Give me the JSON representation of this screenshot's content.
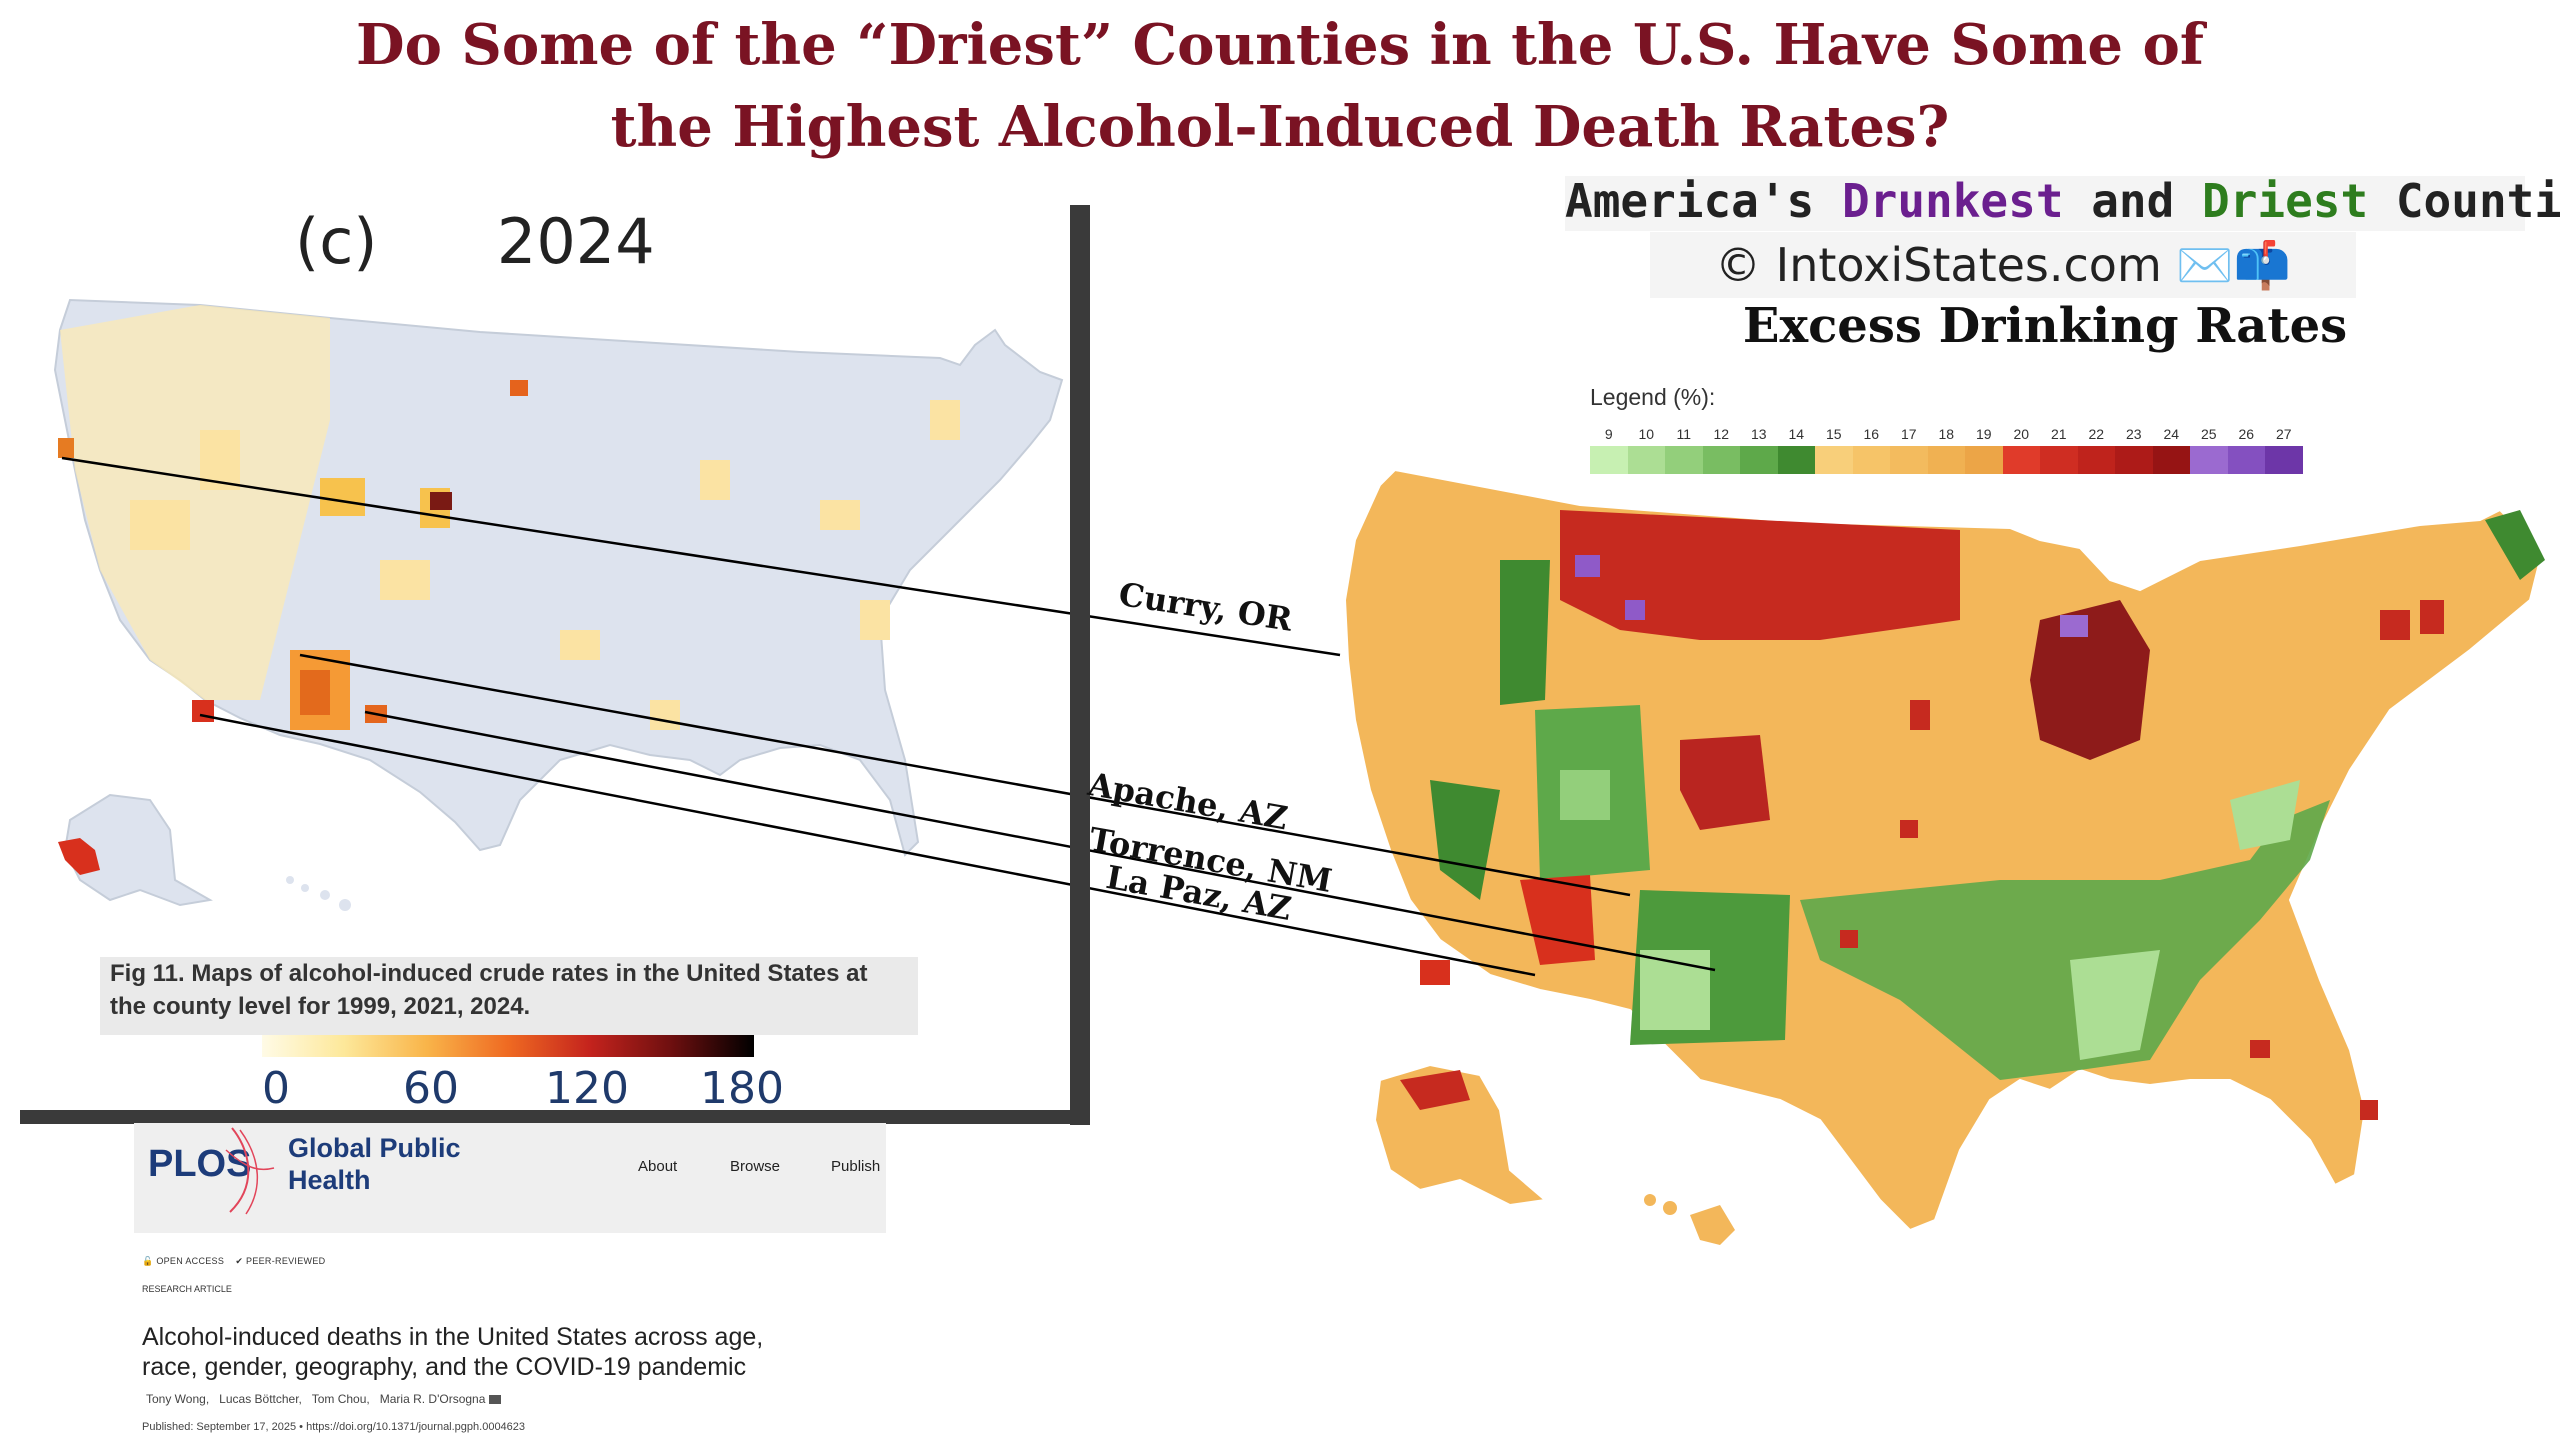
{
  "headline": {
    "line1": "Do Some of the “Driest” Counties in the U.S. Have Some of",
    "line2": "the Highest Alcohol-Induced Death Rates?"
  },
  "left_panel": {
    "label_letter": "(c)",
    "label_year": "2024",
    "figure_caption_line1": "Fig 11. Maps of alcohol-induced crude rates in the United States at",
    "figure_caption_line2": "the county level for 1999, 2021, 2024.",
    "colorbar_ticks": [
      "0",
      "60",
      "120",
      "180"
    ],
    "colorbar_colors": [
      "#fffbe6",
      "#fde89a",
      "#f9b54a",
      "#ef6a22",
      "#c4231d",
      "#6d0f0f",
      "#000000"
    ]
  },
  "article": {
    "logo": "PLOS",
    "journal_line1": "Global Public",
    "journal_line2": "Health",
    "nav": [
      "About",
      "Browse",
      "Publish"
    ],
    "open_access": "OPEN ACCESS",
    "peer_reviewed": "PEER-REVIEWED",
    "type": "RESEARCH ARTICLE",
    "title_line1": "Alcohol-induced deaths in the United States across age,",
    "title_line2": "race, gender, geography, and the COVID-19 pandemic",
    "authors": [
      "Tony Wong,",
      "Lucas Böttcher,",
      "Tom Chou,",
      "Maria R. D'Orsogna"
    ],
    "published": "Published: September 17, 2025 •",
    "doi": "https://doi.org/10.1371/journal.pgph.0004623"
  },
  "right_panel": {
    "brand_parts": [
      "America's ",
      "Drunkest",
      " and ",
      "Driest",
      " Counties"
    ],
    "brand_colors": {
      "drunkest": "#6b1f8f",
      "driest": "#2e7d1e"
    },
    "copyright": "© IntoxiStates.com ✉️📫",
    "map_title": "Excess Drinking Rates",
    "legend_title": "Legend (%):",
    "legend": [
      {
        "v": "9",
        "c": "#c7f0b2"
      },
      {
        "v": "10",
        "c": "#acde94"
      },
      {
        "v": "11",
        "c": "#93cf7b"
      },
      {
        "v": "12",
        "c": "#79bd62"
      },
      {
        "v": "13",
        "c": "#5ea94a"
      },
      {
        "v": "14",
        "c": "#3f8a30"
      },
      {
        "v": "15",
        "c": "#f8cf7a"
      },
      {
        "v": "16",
        "c": "#f6c468"
      },
      {
        "v": "17",
        "c": "#f3bb5e"
      },
      {
        "v": "18",
        "c": "#f0b152"
      },
      {
        "v": "19",
        "c": "#eca547"
      },
      {
        "v": "20",
        "c": "#e03b2a"
      },
      {
        "v": "21",
        "c": "#cf2d22"
      },
      {
        "v": "22",
        "c": "#bf231c"
      },
      {
        "v": "23",
        "c": "#ad1b18"
      },
      {
        "v": "24",
        "c": "#961414"
      },
      {
        "v": "25",
        "c": "#9b6ad0"
      },
      {
        "v": "26",
        "c": "#8450c0"
      },
      {
        "v": "27",
        "c": "#6d36a8"
      }
    ]
  },
  "connectors": {
    "labels": [
      "Curry, OR",
      "Apache, AZ",
      "Torrence, NM",
      "La Paz, AZ"
    ]
  }
}
